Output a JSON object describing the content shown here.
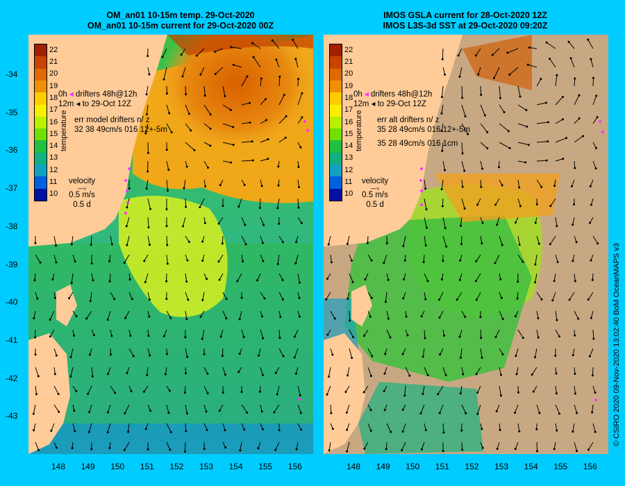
{
  "left_panel": {
    "title_line1": "OM_an01 10-15m temp. 29-Oct-2020",
    "title_line2": "OM_an01 10-15m current for 29-Oct-2020 00Z",
    "legend_drifters": "drifters 48h@12h",
    "legend_drifters_left": "0h",
    "legend_to": "to 29-Oct 12Z",
    "legend_to_left": "12m",
    "err_line1": "err model drifters n/ z",
    "err_line2": "32 38 49cm/s 016 12+-5m",
    "velocity_label": "velocity",
    "velocity_speed": "0.5 m/s",
    "velocity_time": "0.5 d"
  },
  "right_panel": {
    "title_line1": "IMOS GSLA current for 28-Oct-2020 12Z",
    "title_line2": "IMOS L3S-3d SST at 29-Oct-2020 09:20Z",
    "legend_drifters": "drifters 48h@12h",
    "legend_drifters_left": "0h",
    "legend_to": "to 29-Oct 12Z",
    "legend_to_left": "12m",
    "err_line1": "err alt drifters n/ z",
    "err_line2": "35 28 49cm/s 016 12+-5m",
    "err_line3": "35 28 49cm/s 016 1cm",
    "velocity_label": "velocity",
    "velocity_speed": "0.5 m/s",
    "velocity_time": "0.5 d"
  },
  "colorbar": {
    "label": "temperature",
    "ticks": [
      "22",
      "21",
      "20",
      "19",
      "18",
      "17",
      "16",
      "15",
      "14",
      "13",
      "12",
      "11",
      "10"
    ],
    "colors": [
      "#a02000",
      "#c84400",
      "#e06a00",
      "#f09000",
      "#ffcc00",
      "#f8f000",
      "#b8f000",
      "#70e000",
      "#20c040",
      "#10b080",
      "#10a0c0",
      "#0060e0",
      "#0010a0"
    ]
  },
  "axes": {
    "lat_ticks": [
      "-34",
      "-35",
      "-36",
      "-37",
      "-38",
      "-39",
      "-40",
      "-41",
      "-42",
      "-43"
    ],
    "lon_ticks": [
      "148",
      "149",
      "150",
      "151",
      "152",
      "153",
      "154",
      "155",
      "156"
    ]
  },
  "credit": "© CSIRO 2020  09-Nov-2020 13:02:40 BoM OceanMAPS v3",
  "colors": {
    "background": "#00ccff",
    "land": "#ffcc99",
    "no_data": "#c8a882",
    "drifter": "#ff33ff"
  }
}
